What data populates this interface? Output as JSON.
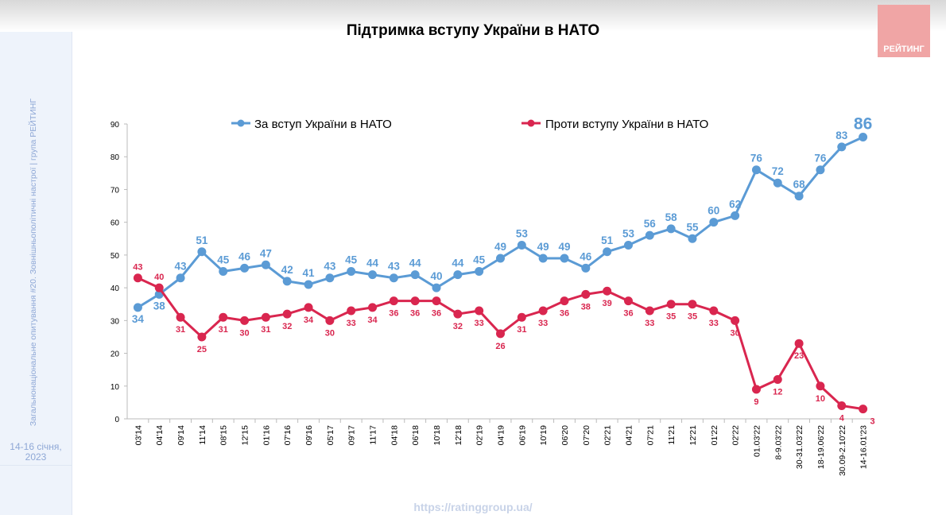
{
  "header": {
    "title": "Підтримка вступу України в НАТО",
    "logo": "РЕЙТИНГ"
  },
  "sidebar": {
    "caption": "Загальнонаціональне опитування #20. Зовнішньополітичні настрої | група РЕЙТИНГ",
    "date_line1": "14-16 січня,",
    "date_line2": "2023"
  },
  "footer": {
    "url": "https://ratinggroup.ua/"
  },
  "chart_data": {
    "type": "line",
    "title": "Підтримка вступу України в НАТО",
    "ylim": [
      0,
      90
    ],
    "yticks": [
      0,
      10,
      20,
      30,
      40,
      50,
      60,
      70,
      80,
      90
    ],
    "legend_placement": "top",
    "categories": [
      "03'14",
      "04'14",
      "09'14",
      "11'14",
      "08'15",
      "12'15",
      "01'16",
      "07'16",
      "09'16",
      "05'17",
      "09'17",
      "11'17",
      "04'18",
      "06'18",
      "10'18",
      "12'18",
      "02'19",
      "04'19",
      "06'19",
      "10'19",
      "06'20",
      "07'20",
      "02'21",
      "04'21",
      "07'21",
      "11'21",
      "12'21",
      "01'22",
      "02'22",
      "01.03'22",
      "8-9.03'22",
      "30-31.03'22",
      "18-19.06'22",
      "30.09-2.10'22",
      "14-16.01'23"
    ],
    "series": [
      {
        "name": "За вступ України в НАТО",
        "color": "#5b9bd5",
        "values": [
          34,
          38,
          43,
          51,
          45,
          46,
          47,
          42,
          41,
          43,
          45,
          44,
          43,
          44,
          40,
          44,
          45,
          49,
          53,
          49,
          49,
          46,
          51,
          53,
          56,
          58,
          55,
          60,
          62,
          76,
          72,
          68,
          76,
          83,
          86
        ]
      },
      {
        "name": "Проти вступу України в НАТО",
        "color": "#d9264f",
        "values": [
          43,
          40,
          31,
          25,
          31,
          30,
          31,
          32,
          34,
          30,
          33,
          34,
          36,
          36,
          36,
          32,
          33,
          26,
          31,
          33,
          36,
          38,
          39,
          36,
          33,
          35,
          35,
          33,
          30,
          9,
          12,
          23,
          10,
          4,
          3
        ]
      }
    ]
  }
}
